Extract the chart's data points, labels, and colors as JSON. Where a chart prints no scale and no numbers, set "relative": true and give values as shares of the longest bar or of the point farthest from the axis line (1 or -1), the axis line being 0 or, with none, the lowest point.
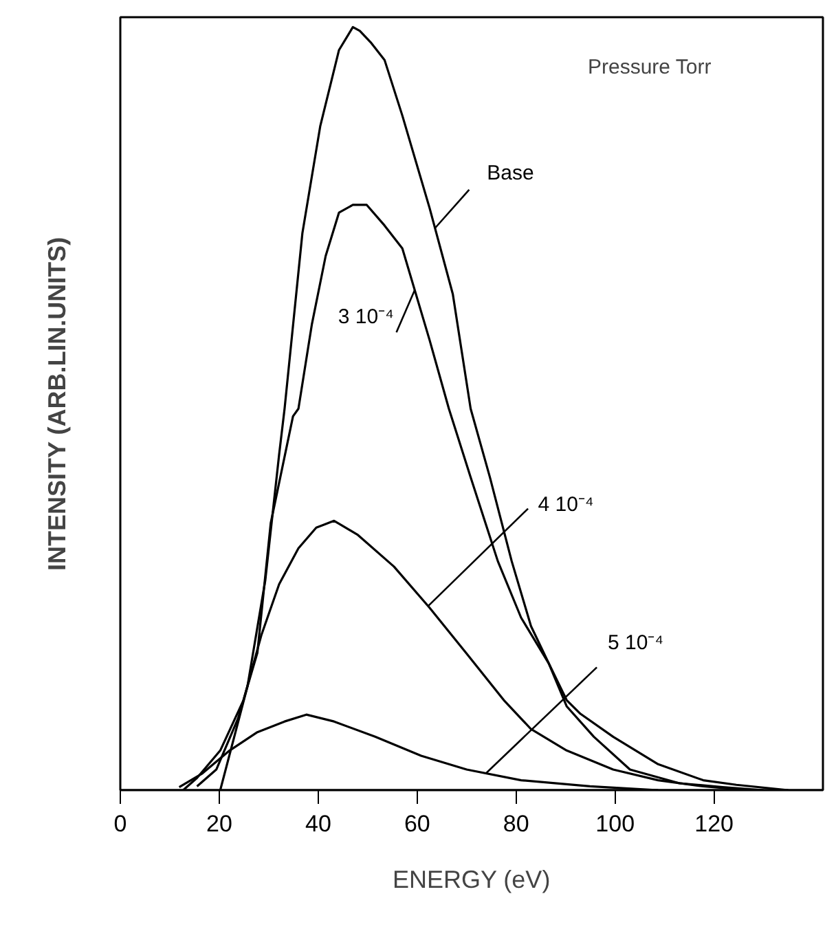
{
  "chart_data": {
    "type": "line",
    "xlabel": "ENERGY (eV)",
    "ylabel": "INTENSITY (ARB.LIN.UNITS)",
    "legend_title": "Pressure Torr",
    "xlim": [
      0,
      142
    ],
    "xticks": [
      0,
      20,
      40,
      60,
      80,
      100,
      120
    ],
    "relative": true,
    "tick_labels": "x",
    "grid": false,
    "marker": "none",
    "line_style": "solid",
    "series": [
      {
        "name": "Base",
        "color": "#000000",
        "x": [
          20.2,
          25.7,
          29.3,
          32.1,
          33.2,
          36.8,
          40.4,
          44.2,
          47,
          48.4,
          50.6,
          53.4,
          57,
          62.5,
          67.2,
          70.8,
          74.7,
          79.1,
          83,
          86.6,
          90.2,
          93,
          99.6,
          108.7,
          117.8,
          124.5,
          135
        ],
        "values": [
          0,
          0.136,
          0.275,
          0.44,
          0.5,
          0.73,
          0.87,
          0.97,
          1,
          0.995,
          0.98,
          0.957,
          0.884,
          0.763,
          0.65,
          0.5,
          0.41,
          0.3,
          0.215,
          0.166,
          0.118,
          0.1,
          0.07,
          0.034,
          0.013,
          0.007,
          0
        ]
      },
      {
        "name": "3 10⁻⁴",
        "color": "#000000",
        "x": [
          15.5,
          19.4,
          23.8,
          27.7,
          30.4,
          34.9,
          36,
          38.7,
          41.5,
          44.2,
          47,
          49.8,
          53.4,
          57,
          62.5,
          66.4,
          70.8,
          76.3,
          81,
          86.6,
          90.2,
          95.7,
          103,
          113,
          121.7,
          130
        ],
        "values": [
          0.005,
          0.027,
          0.094,
          0.18,
          0.35,
          0.49,
          0.5,
          0.61,
          0.7,
          0.757,
          0.767,
          0.767,
          0.74,
          0.71,
          0.59,
          0.5,
          0.41,
          0.3,
          0.226,
          0.166,
          0.11,
          0.07,
          0.027,
          0.009,
          0.004,
          0
        ]
      },
      {
        "name": "4 10⁻⁴",
        "color": "#000000",
        "x": [
          12.7,
          15.5,
          20.2,
          24.9,
          28.5,
          32.1,
          36,
          39.6,
          43.2,
          47.9,
          55.3,
          62.5,
          70,
          77.5,
          83,
          90.2,
          99.6,
          108.7,
          117.8,
          127
        ],
        "values": [
          0,
          0.016,
          0.052,
          0.118,
          0.203,
          0.27,
          0.317,
          0.344,
          0.353,
          0.335,
          0.293,
          0.239,
          0.179,
          0.118,
          0.08,
          0.052,
          0.027,
          0.013,
          0.005,
          0
        ]
      },
      {
        "name": "5 10⁻⁴",
        "color": "#000000",
        "x": [
          11.9,
          16.6,
          22.1,
          27.7,
          33.2,
          37.6,
          43.2,
          51.5,
          60.8,
          70,
          81,
          94.9,
          108.7
        ],
        "values": [
          0.004,
          0.022,
          0.052,
          0.076,
          0.09,
          0.099,
          0.09,
          0.07,
          0.045,
          0.027,
          0.013,
          0.005,
          0
        ]
      }
    ]
  }
}
